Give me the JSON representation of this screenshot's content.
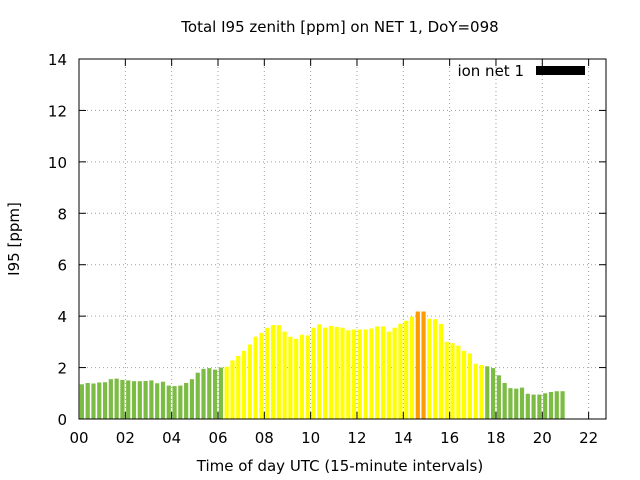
{
  "chart_data": {
    "type": "bar",
    "title": "Total I95 zenith [ppm] on NET 1, DoY=098",
    "xlabel": "Time of day UTC (15-minute intervals)",
    "ylabel": "I95 [ppm]",
    "xlim": [
      0,
      22.75
    ],
    "ylim": [
      0,
      14
    ],
    "x_ticks": [
      "00",
      "02",
      "04",
      "06",
      "08",
      "10",
      "12",
      "14",
      "16",
      "18",
      "20",
      "22"
    ],
    "x_tick_values": [
      0,
      2,
      4,
      6,
      8,
      10,
      12,
      14,
      16,
      18,
      20,
      22
    ],
    "y_ticks": [
      "0",
      "2",
      "4",
      "6",
      "8",
      "10",
      "12",
      "14"
    ],
    "y_tick_values": [
      0,
      2,
      4,
      6,
      8,
      10,
      12,
      14
    ],
    "grid": true,
    "legend": {
      "placement": "top-right",
      "entries": [
        {
          "label": "ion net 1",
          "color": "#000000"
        }
      ]
    },
    "interval_hours": 0.25,
    "category_colors": {
      "green": "#7cbc44",
      "yellow": "#ffff00",
      "orange": "#ff9a00"
    },
    "series": [
      {
        "name": "ion net 1",
        "values": [
          1.35,
          1.4,
          1.38,
          1.42,
          1.43,
          1.55,
          1.57,
          1.52,
          1.5,
          1.47,
          1.47,
          1.48,
          1.5,
          1.39,
          1.45,
          1.3,
          1.28,
          1.3,
          1.4,
          1.55,
          1.8,
          1.95,
          1.98,
          1.92,
          2.0,
          2.03,
          2.28,
          2.45,
          2.65,
          2.9,
          3.2,
          3.35,
          3.55,
          3.65,
          3.65,
          3.4,
          3.2,
          3.12,
          3.28,
          3.25,
          3.55,
          3.68,
          3.55,
          3.62,
          3.58,
          3.55,
          3.45,
          3.48,
          3.48,
          3.48,
          3.52,
          3.6,
          3.6,
          3.4,
          3.55,
          3.7,
          3.82,
          3.98,
          4.18,
          4.18,
          3.9,
          3.88,
          3.7,
          3.0,
          2.95,
          2.85,
          2.65,
          2.55,
          2.15,
          2.1,
          2.05,
          1.98,
          1.7,
          1.4,
          1.2,
          1.18,
          1.22,
          0.98,
          0.95,
          0.95,
          1.0,
          1.05,
          1.08,
          1.08
        ],
        "colors": [
          "green",
          "green",
          "green",
          "green",
          "green",
          "green",
          "green",
          "green",
          "green",
          "green",
          "green",
          "green",
          "green",
          "green",
          "green",
          "green",
          "green",
          "green",
          "green",
          "green",
          "green",
          "green",
          "green",
          "green",
          "green",
          "yellow",
          "yellow",
          "yellow",
          "yellow",
          "yellow",
          "yellow",
          "yellow",
          "yellow",
          "yellow",
          "yellow",
          "yellow",
          "yellow",
          "yellow",
          "yellow",
          "yellow",
          "yellow",
          "yellow",
          "yellow",
          "yellow",
          "yellow",
          "yellow",
          "yellow",
          "yellow",
          "yellow",
          "yellow",
          "yellow",
          "yellow",
          "yellow",
          "yellow",
          "yellow",
          "yellow",
          "yellow",
          "yellow",
          "orange",
          "orange",
          "yellow",
          "yellow",
          "yellow",
          "yellow",
          "yellow",
          "yellow",
          "yellow",
          "yellow",
          "yellow",
          "yellow",
          "green",
          "green",
          "green",
          "green",
          "green",
          "green",
          "green",
          "green",
          "green",
          "green",
          "green",
          "green",
          "green",
          "green"
        ]
      }
    ]
  }
}
